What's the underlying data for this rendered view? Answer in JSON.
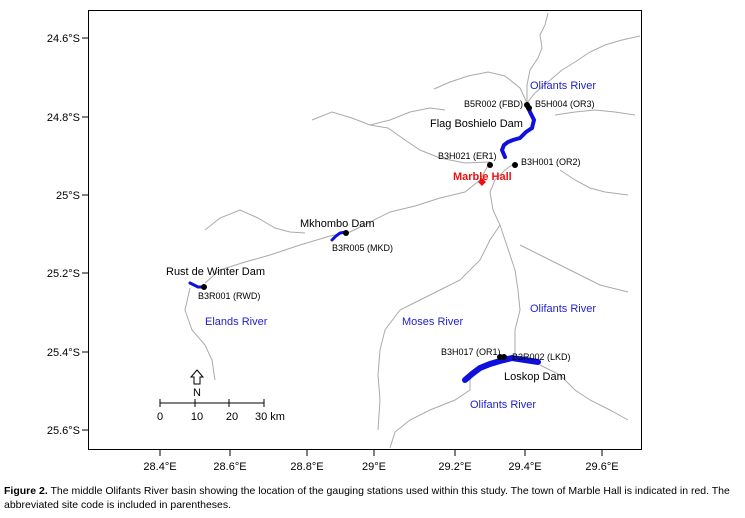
{
  "figure": {
    "caption_label": "Figure 2.",
    "caption_text": " The middle Olifants River basin showing the location of the gauging stations used within this study. The town of Marble Hall is indicated in red. The abbreviated site code is included in parentheses."
  },
  "axes": {
    "x_ticks": [
      "28.4°E",
      "28.6°E",
      "28.8°E",
      "29°E",
      "29.2°E",
      "29.4°E",
      "29.6°E"
    ],
    "y_ticks": [
      "24.6°S",
      "24.8°S",
      "25°S",
      "25.2°S",
      "25.4°S",
      "25.6°S"
    ]
  },
  "dams": {
    "flag_boshielo": "Flag Boshielo Dam",
    "mkhombo": "Mkhombo Dam",
    "rust_de_winter": "Rust de Winter Dam",
    "loskop": "Loskop Dam"
  },
  "stations": {
    "b5r002": "B5R002 (FBD)",
    "b5h004": "B5H004 (OR3)",
    "b3h021": "B3H021 (ER1)",
    "b3h001": "B3H001 (OR2)",
    "b3r005": "B3R005 (MKD)",
    "b3r001": "B3R001 (RWD)",
    "b3h017": "B3H017 (OR1)",
    "b3r002": "B3R002 (LKD)"
  },
  "rivers": {
    "olifants_top": "Olifants River",
    "olifants_mid": "Olifants River",
    "olifants_bottom": "Olifants River",
    "elands": "Elands River",
    "moses": "Moses River"
  },
  "town": {
    "name": "Marble Hall",
    "color": "#ee1111"
  },
  "scale_bar": {
    "north": "N",
    "labels": [
      "0",
      "10",
      "20",
      "30 km"
    ]
  },
  "colors": {
    "dam": "#1010dd",
    "river_label": "#2222cc",
    "station": "#000000"
  }
}
